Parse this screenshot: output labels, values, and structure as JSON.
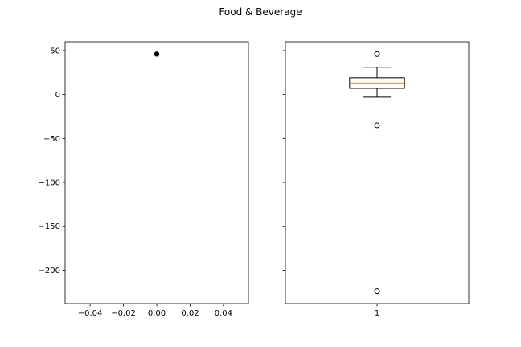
{
  "chart_data": {
    "title": "Food & Beverage",
    "shared_y": true,
    "ylim": [
      -238,
      60
    ],
    "yticks": [
      50,
      0,
      -50,
      -100,
      -150,
      -200
    ],
    "ytick_labels": [
      "50",
      "0",
      "−50",
      "−100",
      "−150",
      "−200"
    ],
    "panels": [
      {
        "type": "scatter",
        "xlim": [
          -0.055,
          0.055
        ],
        "xticks": [
          -0.04,
          -0.02,
          0.0,
          0.02,
          0.04
        ],
        "xtick_labels": [
          "−0.04",
          "−0.02",
          "0.00",
          "0.02",
          "0.04"
        ],
        "points": [
          {
            "x": 0.0,
            "y": 46
          }
        ],
        "marker_color": "#000000"
      },
      {
        "type": "boxplot",
        "xlim": [
          0.5,
          1.5
        ],
        "xticks": [
          1
        ],
        "xtick_labels": [
          "1"
        ],
        "box": {
          "position": 1,
          "q1": 7,
          "median": 13,
          "q3": 19,
          "whisker_low": -3,
          "whisker_high": 31,
          "fliers": [
            46,
            -35,
            -224
          ]
        },
        "median_color": "#ff7f0e"
      }
    ]
  }
}
